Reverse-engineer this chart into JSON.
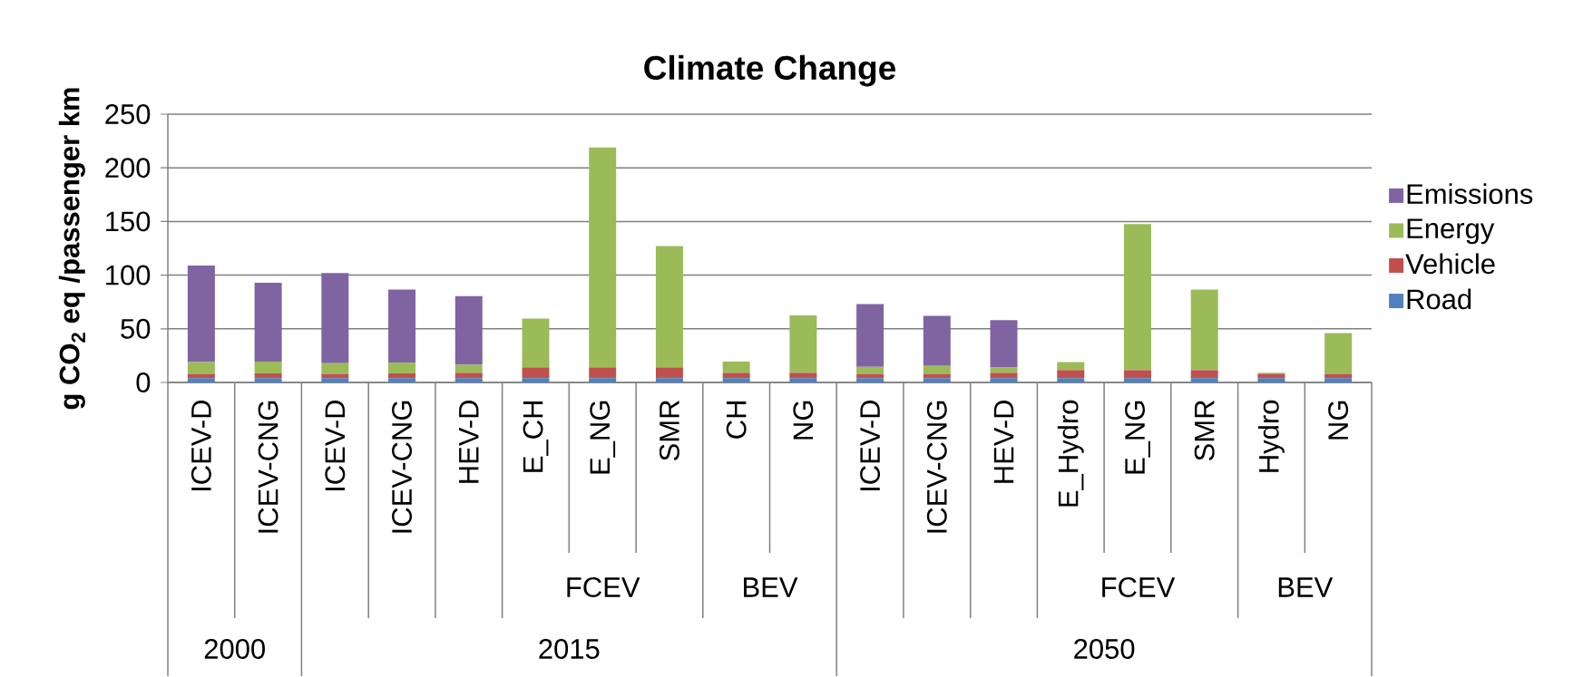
{
  "chart_data": {
    "type": "bar",
    "title": "Climate Change",
    "ylabel": "g CO$_{2}$ eq /passenger km",
    "categories": [
      "ICEV-D",
      "ICEV-CNG",
      "ICEV-D",
      "ICEV-CNG",
      "HEV-D",
      "E_CH",
      "E_NG",
      "SMR",
      "CH",
      "NG",
      "ICEV-D",
      "ICEV-CNG",
      "HEV-D",
      "E_Hydro",
      "E_NG",
      "SMR",
      "Hydro",
      "NG"
    ],
    "series": [
      {
        "name": "Road",
        "color": "#4f81bd",
        "values": [
          4,
          4,
          4,
          4,
          4,
          4,
          4,
          4,
          4,
          4,
          4,
          4,
          4,
          4,
          4,
          4,
          4,
          4
        ]
      },
      {
        "name": "Vehicle",
        "color": "#c0504d",
        "values": [
          4,
          4.5,
          4,
          4.5,
          5,
          10,
          10,
          10,
          5,
          5,
          4,
          4,
          5,
          7.5,
          7.5,
          7.5,
          4,
          4
        ]
      },
      {
        "name": "Energy",
        "color": "#9bbb59",
        "values": [
          11,
          11,
          10,
          10,
          7.5,
          45.5,
          205,
          113,
          10.5,
          53.5,
          6.5,
          7.5,
          5,
          7.5,
          136,
          75,
          1,
          38
        ]
      },
      {
        "name": "Emissions",
        "color": "#8064a2",
        "values": [
          90,
          73.5,
          84,
          68,
          64,
          null,
          null,
          null,
          null,
          null,
          58.5,
          46.5,
          44,
          null,
          null,
          null,
          null,
          null
        ]
      }
    ],
    "stacked": true,
    "ylim": [
      0,
      250
    ],
    "yticks": [
      0,
      50,
      100,
      150,
      200,
      250
    ],
    "grid": "y",
    "legend": "right",
    "annotations": [
      "FCEV",
      "BEV",
      "FCEV",
      "BEV",
      "2000",
      "2015",
      "2050"
    ]
  }
}
